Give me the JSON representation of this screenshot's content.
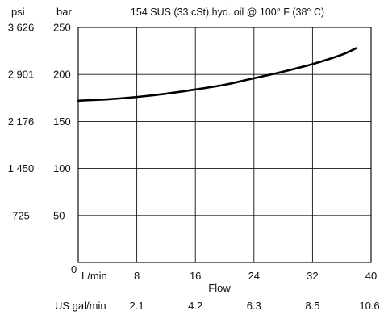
{
  "chart_data": {
    "type": "line",
    "title": "154 SUS (33 cSt) hyd. oil @ 100° F (38° C)",
    "xlabel": "Flow",
    "x_unit_primary": "L/min",
    "x_unit_secondary": "US gal/min",
    "y_unit_primary": "bar",
    "y_unit_secondary": "psi",
    "xlim": [
      0,
      40
    ],
    "ylim": [
      0,
      250
    ],
    "x_ticks": [
      "8",
      "16",
      "24",
      "32",
      "40"
    ],
    "x_ticks_secondary": [
      "2.1",
      "4.2",
      "6.3",
      "8.5",
      "10.6"
    ],
    "x_origin_label": "0",
    "y_ticks": [
      "50",
      "100",
      "150",
      "200",
      "250"
    ],
    "y_ticks_secondary": [
      "725",
      "1 450",
      "2 176",
      "2 901",
      "3 626"
    ],
    "grid": true,
    "series": [
      {
        "x": [
          0,
          4,
          8,
          12,
          16,
          20,
          24,
          28,
          32,
          36,
          38
        ],
        "y": [
          172,
          173.5,
          176,
          179.5,
          184,
          189,
          196,
          203,
          211,
          221,
          228
        ]
      }
    ]
  }
}
